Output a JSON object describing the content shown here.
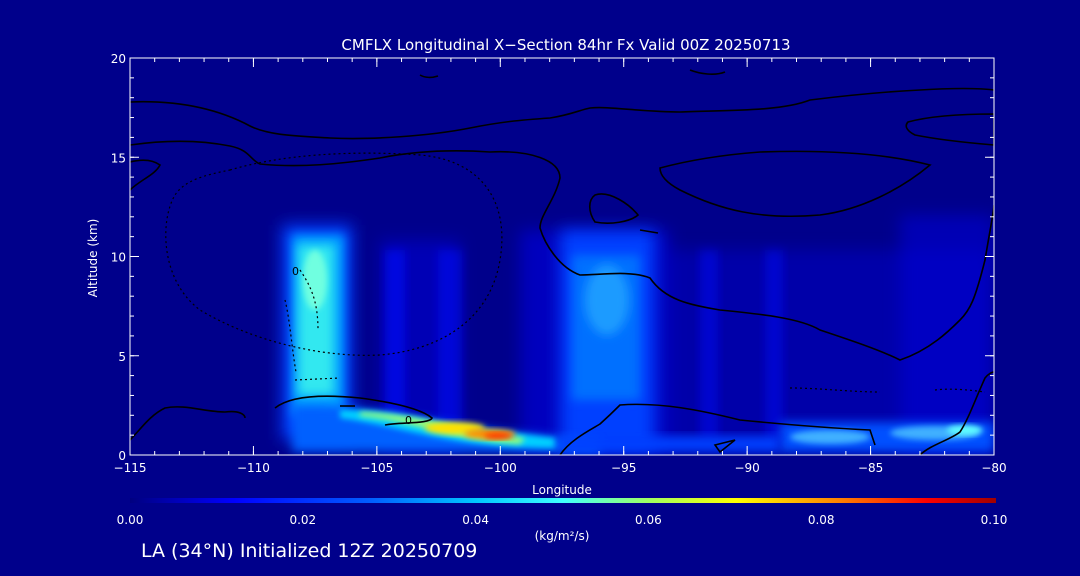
{
  "chart_data": {
    "type": "heatmap",
    "title": "CMFLX Longitudinal X−Section 84hr  Fx Valid 00Z 20250713",
    "xlabel": "Longitude",
    "ylabel": "Altitude (km)",
    "xlim": [
      -115,
      -80
    ],
    "ylim": [
      0,
      20
    ],
    "x_ticks": [
      -115,
      -110,
      -105,
      -100,
      -95,
      -90,
      -85,
      -80
    ],
    "x_tick_labels": [
      "−115",
      "−110",
      "−105",
      "−100",
      "−95",
      "−90",
      "−85",
      "−80"
    ],
    "y_ticks": [
      0,
      5,
      10,
      15,
      20
    ],
    "y_tick_labels": [
      "0",
      "5",
      "10",
      "15",
      "20"
    ],
    "colorbar": {
      "label": "(kg/m²/s)",
      "min": 0.0,
      "max": 0.1,
      "ticks": [
        0.0,
        0.02,
        0.04,
        0.06,
        0.08,
        0.1
      ],
      "tick_labels": [
        "0.00",
        "0.02",
        "0.04",
        "0.06",
        "0.08",
        "0.10"
      ],
      "colormap": [
        "#00008b",
        "#0000ff",
        "#00b4ff",
        "#00ffff",
        "#ffff00",
        "#ff8000",
        "#ff0000",
        "#8b0000"
      ]
    },
    "contour_label": "0",
    "flux_features": [
      {
        "lon_min": -108.5,
        "lon_max": -106.5,
        "alt_min": 2.5,
        "alt_max": 11.8,
        "peak": 0.038
      },
      {
        "lon_min": -104.0,
        "lon_max": -98.0,
        "alt_min": 0.8,
        "alt_max": 2.2,
        "peak": 0.095
      },
      {
        "lon_min": -97.0,
        "lon_max": -93.5,
        "alt_min": 2.5,
        "alt_max": 11.0,
        "peak": 0.022
      },
      {
        "lon_min": -89.0,
        "lon_max": -81.0,
        "alt_min": 0.5,
        "alt_max": 1.6,
        "peak": 0.035
      },
      {
        "lon_min": -104.5,
        "lon_max": -103.5,
        "alt_min": 3.0,
        "alt_max": 10.5,
        "peak": 0.01
      },
      {
        "lon_min": -103.0,
        "lon_max": -101.5,
        "alt_min": 3.0,
        "alt_max": 10.5,
        "peak": 0.008
      }
    ]
  },
  "footer": {
    "text": "LA (34°N) Initialized 12Z 20250709"
  }
}
